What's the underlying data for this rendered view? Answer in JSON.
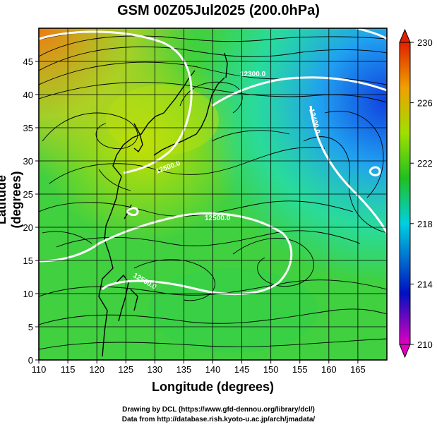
{
  "title": "GSM 00Z05Jul2025 (200.0hPa)",
  "credits": [
    "Drawing by DCL (https://www.gfd-dennou.org/library/dcl/)",
    "Data from http://database.rish.kyoto-u.ac.jp/arch/jmadata/"
  ],
  "chart_data": {
    "type": "heatmap",
    "xlabel": "Longitude (degrees)",
    "ylabel": "Latitude  (degrees)",
    "xlim": [
      110,
      170
    ],
    "ylim": [
      0,
      50
    ],
    "x_ticks": [
      110,
      115,
      120,
      125,
      130,
      135,
      140,
      145,
      150,
      155,
      160,
      165
    ],
    "y_ticks": [
      0,
      5,
      10,
      15,
      20,
      25,
      30,
      35,
      40,
      45
    ],
    "grid": true,
    "colorbar": {
      "min": 210,
      "max": 230,
      "ticks": [
        210,
        214,
        218,
        222,
        226,
        230
      ],
      "colors": [
        "#e000c0",
        "#0010c0",
        "#00d0e0",
        "#20c020",
        "#a0e000",
        "#f0a000",
        "#e02000"
      ]
    },
    "contour_labels": [
      "12300.0",
      "12400.0",
      "12500.0",
      "12500.0",
      "12500.0"
    ],
    "overlays": [
      "streamlines",
      "coastlines",
      "geopotential height contours"
    ]
  }
}
